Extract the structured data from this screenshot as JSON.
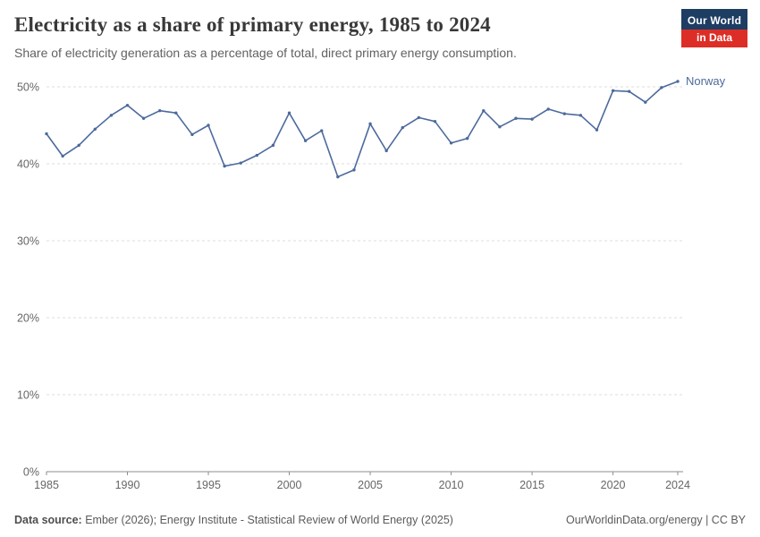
{
  "header": {
    "title": "Electricity as a share of primary energy, 1985 to 2024",
    "subtitle": "Share of electricity generation as a percentage of total, direct primary energy consumption.",
    "logo": {
      "line1": "Our World",
      "line2": "in Data"
    }
  },
  "colors": {
    "series_norway": "#4c6a9c",
    "grid": "#dcdcdc",
    "axis": "#8e8e8e",
    "tick_label": "#666666",
    "logo_bg": "#1d3d63",
    "logo_red": "#dc2e27"
  },
  "chart_data": {
    "type": "line",
    "title": "Electricity as a share of primary energy, 1985 to 2024",
    "xlabel": "",
    "ylabel": "",
    "ylim": [
      0,
      50
    ],
    "yticks": [
      0,
      10,
      20,
      30,
      40,
      50
    ],
    "ytick_suffix": "%",
    "xticks": [
      1985,
      1990,
      1995,
      2000,
      2005,
      2010,
      2015,
      2020,
      2024
    ],
    "grid": "horizontal-dashed",
    "legend": "end-of-line-label",
    "x": [
      1985,
      1986,
      1987,
      1988,
      1989,
      1990,
      1991,
      1992,
      1993,
      1994,
      1995,
      1996,
      1997,
      1998,
      1999,
      2000,
      2001,
      2002,
      2003,
      2004,
      2005,
      2006,
      2007,
      2008,
      2009,
      2010,
      2011,
      2012,
      2013,
      2014,
      2015,
      2016,
      2017,
      2018,
      2019,
      2020,
      2021,
      2022,
      2023,
      2024
    ],
    "series": [
      {
        "name": "Norway",
        "color": "#4c6a9c",
        "values": [
          43.9,
          41.0,
          42.4,
          44.5,
          46.3,
          47.6,
          45.9,
          46.9,
          46.6,
          43.8,
          45.0,
          39.7,
          40.1,
          41.1,
          42.4,
          46.6,
          43.0,
          44.3,
          38.3,
          39.2,
          45.2,
          41.7,
          44.7,
          46.0,
          45.5,
          42.7,
          43.3,
          46.9,
          44.8,
          45.9,
          45.8,
          47.1,
          46.5,
          46.3,
          44.4,
          49.5,
          49.4,
          48.0,
          49.9,
          50.7
        ]
      }
    ]
  },
  "footer": {
    "source_label": "Data source:",
    "source_text": " Ember (2026); Energy Institute - Statistical Review of World Energy (2025)",
    "credit": "OurWorldinData.org/energy | CC BY"
  }
}
